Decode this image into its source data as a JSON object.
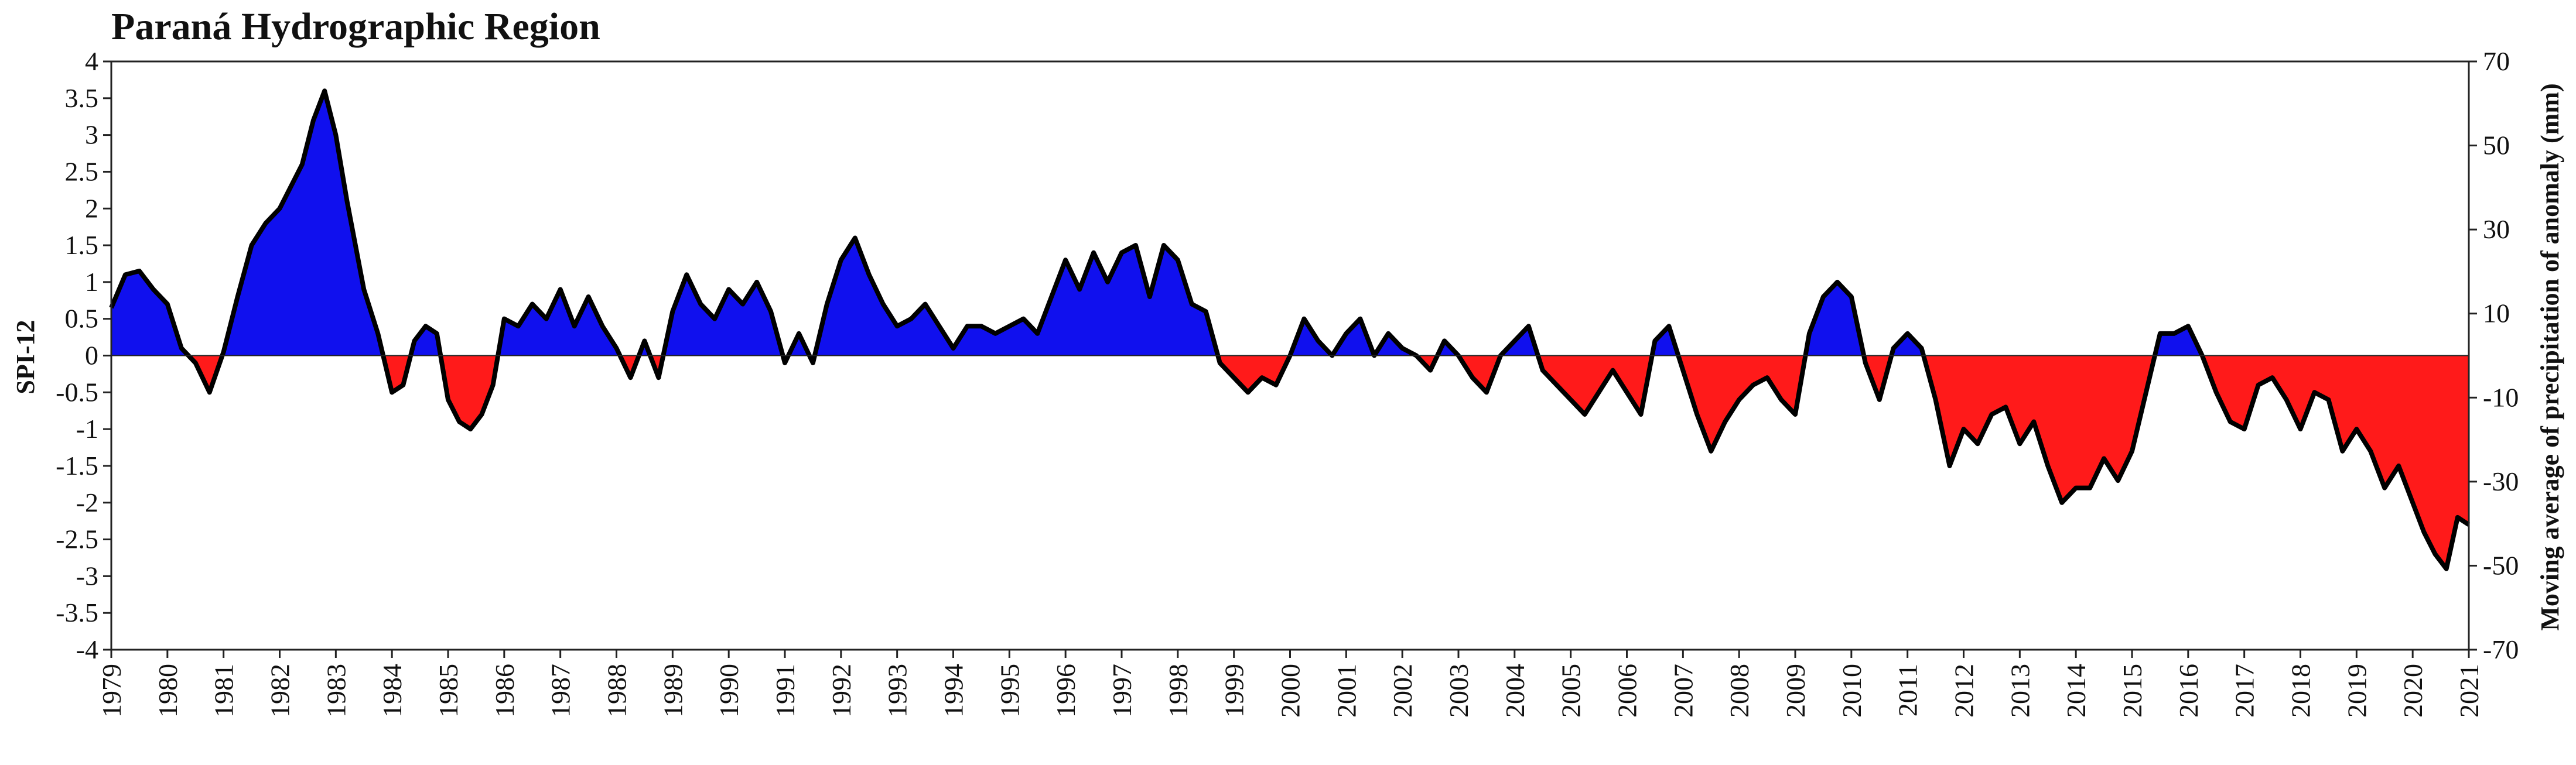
{
  "chart_data": {
    "type": "area",
    "title": "Paraná Hydrographic Region",
    "ylabel": "SPI-12",
    "y2label": "Moving average of precipitation of anomaly (mm)",
    "xlabel": "",
    "ylim": [
      -4,
      4
    ],
    "y2lim": [
      -70,
      70
    ],
    "xlim": [
      1979,
      2021
    ],
    "yticks": [
      "4",
      "3.5",
      "3",
      "2.5",
      "2",
      "1.5",
      "1",
      "0.5",
      "0",
      "-0.5",
      "-1",
      "-1.5",
      "-2",
      "-2.5",
      "-3",
      "-3.5",
      "-4"
    ],
    "y2ticks": [
      "70",
      "50",
      "30",
      "10",
      "-10",
      "-30",
      "-50",
      "-70"
    ],
    "xticks": [
      "1979",
      "1980",
      "1981",
      "1982",
      "1983",
      "1984",
      "1985",
      "1986",
      "1987",
      "1988",
      "1989",
      "1990",
      "1991",
      "1992",
      "1993",
      "1994",
      "1995",
      "1996",
      "1997",
      "1998",
      "1999",
      "2000",
      "2001",
      "2002",
      "2003",
      "2004",
      "2005",
      "2006",
      "2007",
      "2008",
      "2009",
      "2010",
      "2011",
      "2012",
      "2013",
      "2014",
      "2015",
      "2016",
      "2017",
      "2018",
      "2019",
      "2020",
      "2021"
    ],
    "positive_color": "#1010ee",
    "negative_color": "#ff1a1a",
    "line_color": "#000000",
    "series": [
      {
        "name": "SPI-12",
        "x": [
          1979,
          1979.25,
          1979.5,
          1979.75,
          1980,
          1980.25,
          1980.5,
          1980.75,
          1981,
          1981.25,
          1981.5,
          1981.75,
          1982,
          1982.2,
          1982.4,
          1982.6,
          1982.8,
          1983,
          1983.2,
          1983.5,
          1983.75,
          1984,
          1984.2,
          1984.4,
          1984.6,
          1984.8,
          1985,
          1985.2,
          1985.4,
          1985.6,
          1985.8,
          1986,
          1986.25,
          1986.5,
          1986.75,
          1987,
          1987.25,
          1987.5,
          1987.75,
          1988,
          1988.25,
          1988.5,
          1988.75,
          1989,
          1989.25,
          1989.5,
          1989.75,
          1990,
          1990.25,
          1990.5,
          1990.75,
          1991,
          1991.25,
          1991.5,
          1991.75,
          1992,
          1992.25,
          1992.5,
          1992.75,
          1993,
          1993.25,
          1993.5,
          1993.75,
          1994,
          1994.25,
          1994.5,
          1994.75,
          1995,
          1995.25,
          1995.5,
          1995.75,
          1996,
          1996.25,
          1996.5,
          1996.75,
          1997,
          1997.25,
          1997.5,
          1997.75,
          1998,
          1998.25,
          1998.5,
          1998.75,
          1999,
          1999.25,
          1999.5,
          1999.75,
          2000,
          2000.25,
          2000.5,
          2000.75,
          2001,
          2001.25,
          2001.5,
          2001.75,
          2002,
          2002.25,
          2002.5,
          2002.75,
          2003,
          2003.25,
          2003.5,
          2003.75,
          2004,
          2004.25,
          2004.5,
          2004.75,
          2005,
          2005.25,
          2005.5,
          2005.75,
          2006,
          2006.25,
          2006.5,
          2006.75,
          2007,
          2007.25,
          2007.5,
          2007.75,
          2008,
          2008.25,
          2008.5,
          2008.75,
          2009,
          2009.25,
          2009.5,
          2009.75,
          2010,
          2010.25,
          2010.5,
          2010.75,
          2011,
          2011.25,
          2011.5,
          2011.75,
          2012,
          2012.25,
          2012.5,
          2012.75,
          2013,
          2013.25,
          2013.5,
          2013.75,
          2014,
          2014.25,
          2014.5,
          2014.75,
          2015,
          2015.25,
          2015.5,
          2015.75,
          2016,
          2016.25,
          2016.5,
          2016.75,
          2017,
          2017.25,
          2017.5,
          2017.75,
          2018,
          2018.25,
          2018.5,
          2018.75,
          2019,
          2019.25,
          2019.5,
          2019.75,
          2020,
          2020.2,
          2020.4,
          2020.6,
          2020.8,
          2021
        ],
        "values": [
          0.65,
          1.1,
          1.15,
          0.9,
          0.7,
          0.1,
          -0.1,
          -0.5,
          0.05,
          0.8,
          1.5,
          1.8,
          2.0,
          2.3,
          2.6,
          3.2,
          3.6,
          3.0,
          2.1,
          0.9,
          0.3,
          -0.5,
          -0.4,
          0.2,
          0.4,
          0.3,
          -0.6,
          -0.9,
          -1.0,
          -0.8,
          -0.4,
          0.5,
          0.4,
          0.7,
          0.5,
          0.9,
          0.4,
          0.8,
          0.4,
          0.1,
          -0.3,
          0.2,
          -0.3,
          0.6,
          1.1,
          0.7,
          0.5,
          0.9,
          0.7,
          1.0,
          0.6,
          -0.1,
          0.3,
          -0.1,
          0.7,
          1.3,
          1.6,
          1.1,
          0.7,
          0.4,
          0.5,
          0.7,
          0.4,
          0.1,
          0.4,
          0.4,
          0.3,
          0.4,
          0.5,
          0.3,
          0.8,
          1.3,
          0.9,
          1.4,
          1.0,
          1.4,
          1.5,
          0.8,
          1.5,
          1.3,
          0.7,
          0.6,
          -0.1,
          -0.3,
          -0.5,
          -0.3,
          -0.4,
          0.0,
          0.5,
          0.2,
          0.0,
          0.3,
          0.5,
          0.0,
          0.3,
          0.1,
          0.0,
          -0.2,
          0.2,
          0.0,
          -0.3,
          -0.5,
          0.0,
          0.2,
          0.4,
          -0.2,
          -0.4,
          -0.6,
          -0.8,
          -0.5,
          -0.2,
          -0.5,
          -0.8,
          0.2,
          0.4,
          -0.2,
          -0.8,
          -1.3,
          -0.9,
          -0.6,
          -0.4,
          -0.3,
          -0.6,
          -0.8,
          0.3,
          0.8,
          1.0,
          0.8,
          -0.1,
          -0.6,
          0.1,
          0.3,
          0.1,
          -0.6,
          -1.5,
          -1.0,
          -1.2,
          -0.8,
          -0.7,
          -1.2,
          -0.9,
          -1.5,
          -2.0,
          -1.8,
          -1.8,
          -1.4,
          -1.7,
          -1.3,
          -0.5,
          0.3,
          0.3,
          0.4,
          0.0,
          -0.5,
          -0.9,
          -1.0,
          -0.4,
          -0.3,
          -0.6,
          -1.0,
          -0.5,
          -0.6,
          -1.3,
          -1.0,
          -1.3,
          -1.8,
          -1.5,
          -2.0,
          -2.4,
          -2.7,
          -2.9,
          -2.2,
          -2.3
        ]
      }
    ],
    "grid": false,
    "legend": "none"
  }
}
